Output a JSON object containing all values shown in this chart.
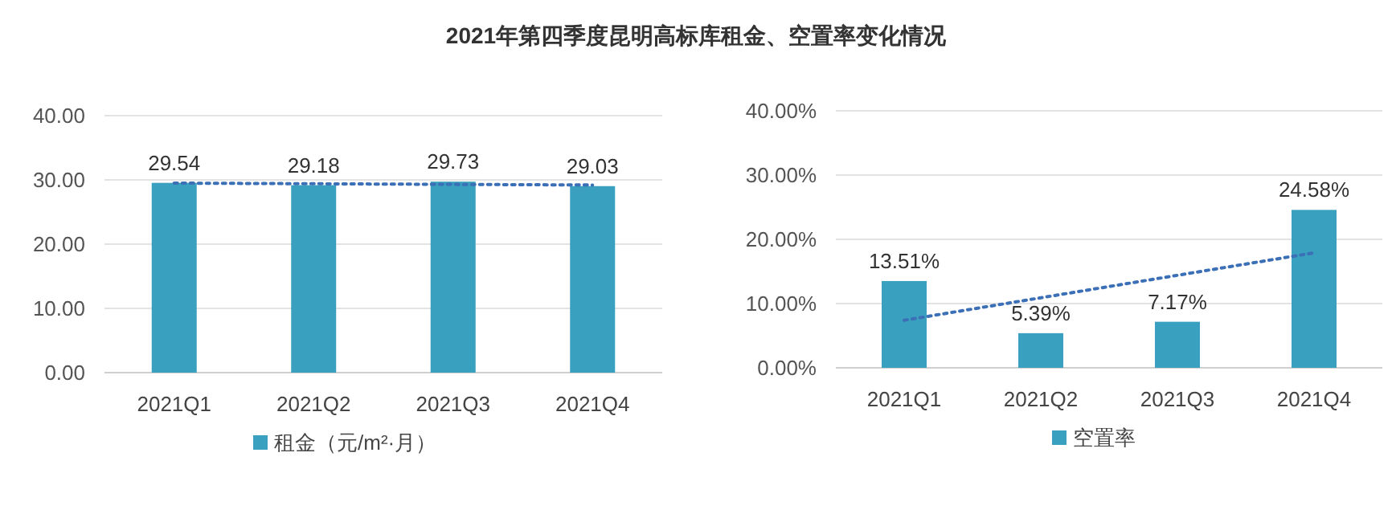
{
  "chart_data": [
    {
      "type": "bar",
      "title": "2021年第四季度昆明高标库租金、空置率变化情况",
      "categories": [
        "2021Q1",
        "2021Q2",
        "2021Q3",
        "2021Q4"
      ],
      "series": [
        {
          "name": "租金（元/m²·月）",
          "color": "#3aa0bf",
          "values": [
            29.54,
            29.18,
            29.73,
            29.03
          ],
          "value_labels": [
            "29.54",
            "29.18",
            "29.73",
            "29.03"
          ]
        },
        {
          "type": "line",
          "color": "#3b6fb6",
          "line_style": "dotted",
          "x": [
            "2021Q1",
            "2021Q4"
          ],
          "values": [
            29.5,
            29.2
          ]
        }
      ],
      "ylim": [
        0,
        40
      ],
      "yticks": [
        {
          "value": 0,
          "label": "0.00"
        },
        {
          "value": 10,
          "label": "10.00"
        },
        {
          "value": 20,
          "label": "20.00"
        },
        {
          "value": 30,
          "label": "30.00"
        },
        {
          "value": 40,
          "label": "40.00"
        }
      ],
      "grid": "y",
      "legend": "bottom"
    },
    {
      "type": "bar",
      "categories": [
        "2021Q1",
        "2021Q2",
        "2021Q3",
        "2021Q4"
      ],
      "series": [
        {
          "name": "空置率",
          "color": "#3aa0bf",
          "values": [
            13.51,
            5.39,
            7.17,
            24.58
          ],
          "value_labels": [
            "13.51%",
            "5.39%",
            "7.17%",
            "24.58%"
          ]
        },
        {
          "type": "line",
          "color": "#3b6fb6",
          "line_style": "dotted",
          "x": [
            "2021Q1",
            "2021Q4"
          ],
          "values": [
            7.4,
            17.9
          ]
        }
      ],
      "ylim": [
        0,
        40
      ],
      "yticks": [
        {
          "value": 0,
          "label": "0.00%"
        },
        {
          "value": 10,
          "label": "10.00%"
        },
        {
          "value": 20,
          "label": "20.00%"
        },
        {
          "value": 30,
          "label": "30.00%"
        },
        {
          "value": 40,
          "label": "40.00%"
        }
      ],
      "grid": "y",
      "legend": "bottom"
    }
  ]
}
